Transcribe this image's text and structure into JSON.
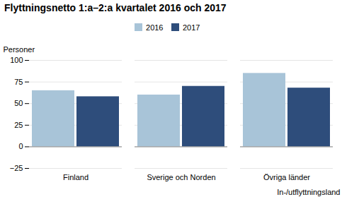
{
  "chart_data": {
    "type": "bar",
    "title": "Flyttningsnetto 1:a–2:a kvartalet 2016 och 2017",
    "xlabel": "In-/utflyttningsland",
    "ylabel": "Personer",
    "categories": [
      "Finland",
      "Sverige och Norden",
      "Övriga länder"
    ],
    "series": [
      {
        "name": "2016",
        "color": "#a8c4d8",
        "values": [
          65,
          60,
          85
        ]
      },
      {
        "name": "2017",
        "color": "#2e4d7b",
        "values": [
          58,
          70,
          68
        ]
      }
    ],
    "ylim": [
      -25,
      100
    ],
    "yticks": [
      -25,
      0,
      25,
      50,
      75,
      100
    ],
    "grid": true,
    "legend": "upper center"
  }
}
